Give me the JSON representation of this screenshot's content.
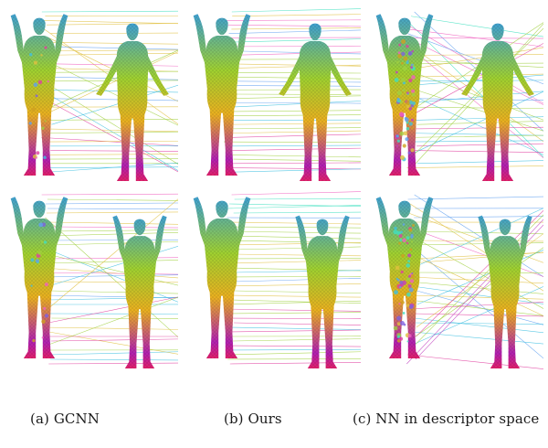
{
  "figure": {
    "captions": [
      {
        "id": "a",
        "text": "(a) GCNN"
      },
      {
        "id": "b",
        "text": "(b) Ours"
      },
      {
        "id": "c",
        "text": "(c) NN in descriptor space"
      }
    ],
    "rows": [
      {
        "id": "top",
        "pose": "arms-raised-vs-arms-down"
      },
      {
        "id": "bottom",
        "pose": "arms-raised-both"
      }
    ],
    "methods": [
      {
        "id": "gcnn",
        "noise": 0.25,
        "texture_noise": 0.25
      },
      {
        "id": "ours",
        "noise": 0.05,
        "texture_noise": 0.0
      },
      {
        "id": "nn",
        "noise": 0.6,
        "texture_noise": 0.9
      }
    ],
    "colors": {
      "head": "#3fa0d0",
      "chest": "#9fd030",
      "hips": "#e8b020",
      "feet": "#b020b0",
      "base": "#e0206a"
    }
  }
}
